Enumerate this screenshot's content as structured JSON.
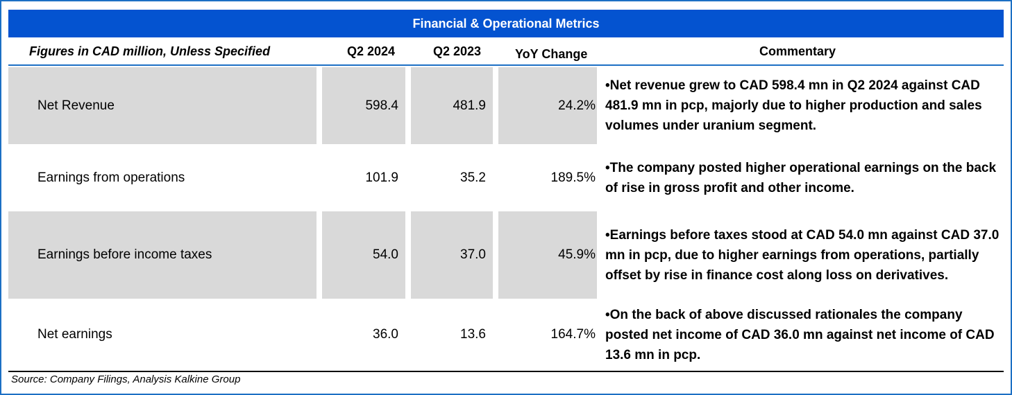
{
  "title": "Financial & Operational Metrics",
  "header": {
    "metric": "Figures in CAD million, Unless Specified",
    "q2_2024": "Q2 2024",
    "q2_2023": "Q2 2023",
    "yoy": "YoY Change",
    "commentary": "Commentary"
  },
  "rows": [
    {
      "metric": "Net Revenue",
      "q2_2024": "598.4",
      "q2_2023": "481.9",
      "yoy": "24.2%",
      "commentary": "•Net revenue grew to CAD 598.4 mn in Q2 2024 against CAD 481.9 mn in pcp, majorly due to higher production and sales volumes under uranium segment.",
      "shaded": true
    },
    {
      "metric": "Earnings from operations",
      "q2_2024": "101.9",
      "q2_2023": "35.2",
      "yoy": "189.5%",
      "commentary": "•The company posted higher operational earnings on the back of rise in gross profit and other income.",
      "shaded": false
    },
    {
      "metric": "Earnings before income taxes",
      "q2_2024": "54.0",
      "q2_2023": "37.0",
      "yoy": "45.9%",
      "commentary": "•Earnings before taxes stood at CAD 54.0 mn against CAD 37.0 mn in pcp, due to higher earnings from operations, partially offset by rise in finance cost along loss on derivatives.",
      "shaded": true
    },
    {
      "metric": "Net earnings",
      "q2_2024": "36.0",
      "q2_2023": "13.6",
      "yoy": "164.7%",
      "commentary": "•On the back of above discussed rationales the company posted net income of CAD 36.0 mn against net income of CAD 13.6 mn in pcp.",
      "shaded": false
    }
  ],
  "source": "Source: Company Filings, Analysis Kalkine Group",
  "colors": {
    "title_bar": "#0453D0",
    "border": "#1C6FC4",
    "shaded_cell": "#D9D9D9"
  }
}
